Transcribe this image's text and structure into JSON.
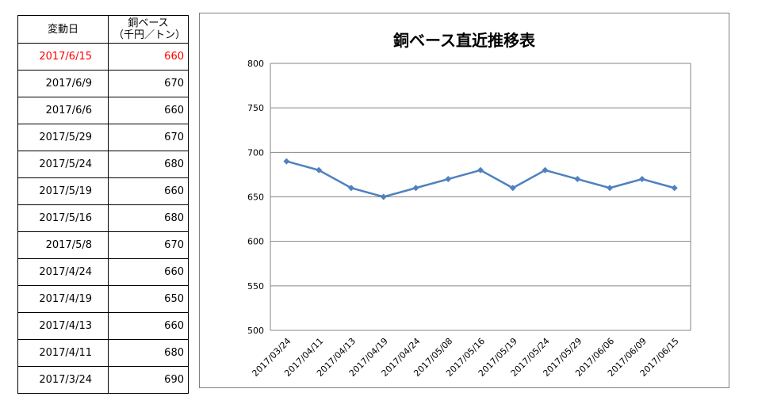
{
  "table": {
    "header_date": "変動日",
    "header_value_line1": "銅ベース",
    "header_value_line2": "（千円／トン）",
    "rows": [
      {
        "date": "2017/6/15",
        "value": "660",
        "highlight": true
      },
      {
        "date": "2017/6/9",
        "value": "670",
        "highlight": false
      },
      {
        "date": "2017/6/6",
        "value": "660",
        "highlight": false
      },
      {
        "date": "2017/5/29",
        "value": "670",
        "highlight": false
      },
      {
        "date": "2017/5/24",
        "value": "680",
        "highlight": false
      },
      {
        "date": "2017/5/19",
        "value": "660",
        "highlight": false
      },
      {
        "date": "2017/5/16",
        "value": "680",
        "highlight": false
      },
      {
        "date": "2017/5/8",
        "value": "670",
        "highlight": false
      },
      {
        "date": "2017/4/24",
        "value": "660",
        "highlight": false
      },
      {
        "date": "2017/4/19",
        "value": "650",
        "highlight": false
      },
      {
        "date": "2017/4/13",
        "value": "660",
        "highlight": false
      },
      {
        "date": "2017/4/11",
        "value": "680",
        "highlight": false
      },
      {
        "date": "2017/3/24",
        "value": "690",
        "highlight": false
      }
    ],
    "highlight_color": "#ff0000"
  },
  "chart_data": {
    "type": "line",
    "title": "銅ベース直近推移表",
    "xlabel": "",
    "ylabel": "",
    "categories": [
      "2017/03/24",
      "2017/04/11",
      "2017/04/13",
      "2017/04/19",
      "2017/04/24",
      "2017/05/08",
      "2017/05/16",
      "2017/05/19",
      "2017/05/24",
      "2017/05/29",
      "2017/06/06",
      "2017/06/09",
      "2017/06/15"
    ],
    "series": [
      {
        "values": [
          690,
          680,
          660,
          650,
          660,
          670,
          680,
          660,
          680,
          670,
          660,
          670,
          660
        ],
        "color": "#4f81bd"
      }
    ],
    "ylim": [
      500,
      800
    ],
    "yticks": [
      500,
      550,
      600,
      650,
      700,
      750,
      800
    ],
    "grid": true,
    "marker": "diamond"
  }
}
